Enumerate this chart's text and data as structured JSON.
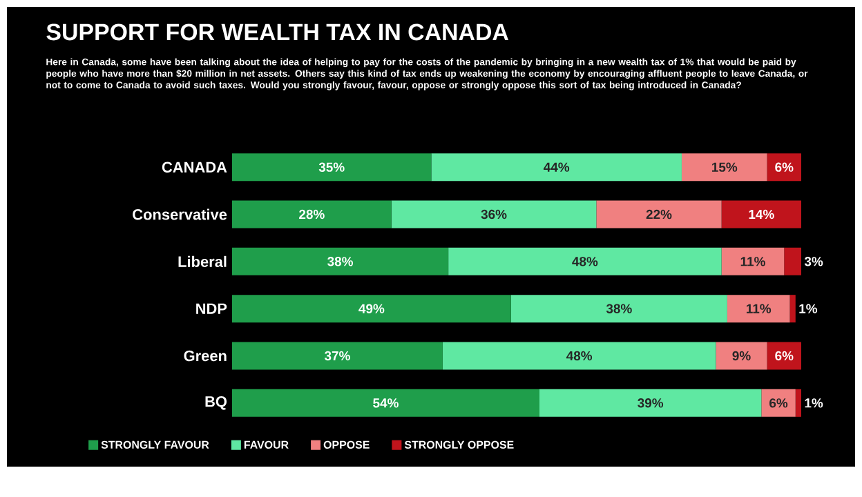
{
  "chart_data": {
    "type": "bar",
    "orientation": "horizontal",
    "stacked": true,
    "legend": "bottom",
    "title": "SUPPORT FOR WEALTH TAX IN CANADA",
    "subtitle": "Here in Canada, some have been talking about the idea of helping to pay for the costs of the pandemic by bringing in a new wealth tax of 1% that would be paid by people who have more than $20 million in net assets. Others say this kind of tax ends up weakening the economy by encouraging affluent people to leave Canada, or not to come to Canada to avoid such taxes. Would you strongly favour, favour, oppose or strongly oppose this sort of tax being introduced in Canada?",
    "categories": [
      "CANADA",
      "Conservative",
      "Liberal",
      "NDP",
      "Green",
      "BQ"
    ],
    "series": [
      {
        "name": "STRONGLY FAVOUR",
        "color": "#1f9e4b",
        "values": [
          35,
          28,
          38,
          49,
          37,
          54
        ],
        "value_labels": [
          "35%",
          "28%",
          "38%",
          "49%",
          "37%",
          "54%"
        ]
      },
      {
        "name": "FAVOUR",
        "color": "#5fe8a2",
        "values": [
          44,
          36,
          48,
          38,
          48,
          39
        ],
        "value_labels": [
          "44%",
          "36%",
          "48%",
          "38%",
          "48%",
          "39%"
        ]
      },
      {
        "name": "OPPOSE",
        "color": "#f08080",
        "values": [
          15,
          22,
          11,
          11,
          9,
          6
        ],
        "value_labels": [
          "15%",
          "22%",
          "11%",
          "11%",
          "9%",
          "6%"
        ]
      },
      {
        "name": "STRONGLY OPPOSE",
        "color": "#c0141c",
        "values": [
          6,
          14,
          3,
          1,
          6,
          1
        ],
        "value_labels": [
          "6%",
          "14%",
          "3%",
          "1%",
          "6%",
          "1%"
        ]
      }
    ]
  }
}
